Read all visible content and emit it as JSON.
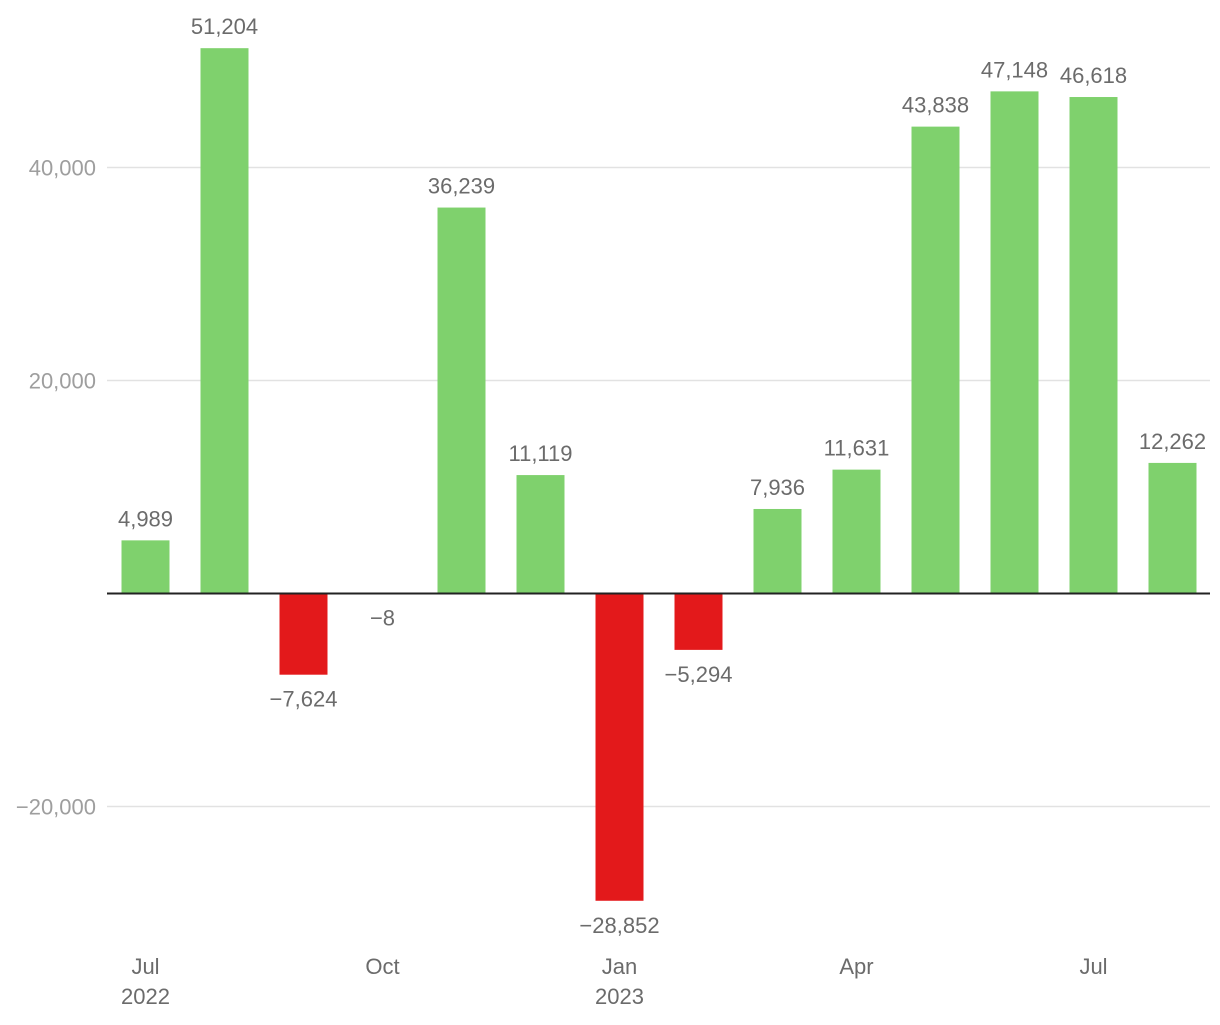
{
  "chart_data": {
    "type": "bar",
    "title": "",
    "xlabel": "",
    "ylabel": "",
    "categories": [
      "2022-07",
      "2022-08",
      "2022-09",
      "2022-10",
      "2022-11",
      "2022-12",
      "2023-01",
      "2023-02",
      "2023-03",
      "2023-04",
      "2023-05",
      "2023-06",
      "2023-07",
      "2023-08"
    ],
    "values": [
      4989,
      51204,
      -7624,
      -8,
      36239,
      11119,
      -28852,
      -5294,
      7936,
      11631,
      43838,
      47148,
      46618,
      12262
    ],
    "value_labels": [
      "4,989",
      "51,204",
      "−7,624",
      "−8",
      "36,239",
      "11,119",
      "−28,852",
      "−5,294",
      "7,936",
      "11,631",
      "43,838",
      "47,148",
      "46,618",
      "12,262"
    ],
    "ylim": [
      -32000,
      56000
    ],
    "y_ticks": [
      {
        "value": -20000,
        "label": "−20,000"
      },
      {
        "value": 20000,
        "label": "20,000"
      },
      {
        "value": 40000,
        "label": "40,000"
      }
    ],
    "x_ticks": [
      {
        "index": 0,
        "line1": "Jul",
        "line2": "2022"
      },
      {
        "index": 3,
        "line1": "Oct",
        "line2": ""
      },
      {
        "index": 6,
        "line1": "Jan",
        "line2": "2023"
      },
      {
        "index": 9,
        "line1": "Apr",
        "line2": ""
      },
      {
        "index": 12,
        "line1": "Jul",
        "line2": ""
      }
    ],
    "grid": true,
    "legend": "none",
    "colors": {
      "positive": "#7fd16d",
      "negative": "#e3191b",
      "gridline": "#e2e2e2",
      "zero_line": "#222222",
      "y_tick_text": "#9e9e9e",
      "label_text": "#6b6b6b"
    }
  }
}
